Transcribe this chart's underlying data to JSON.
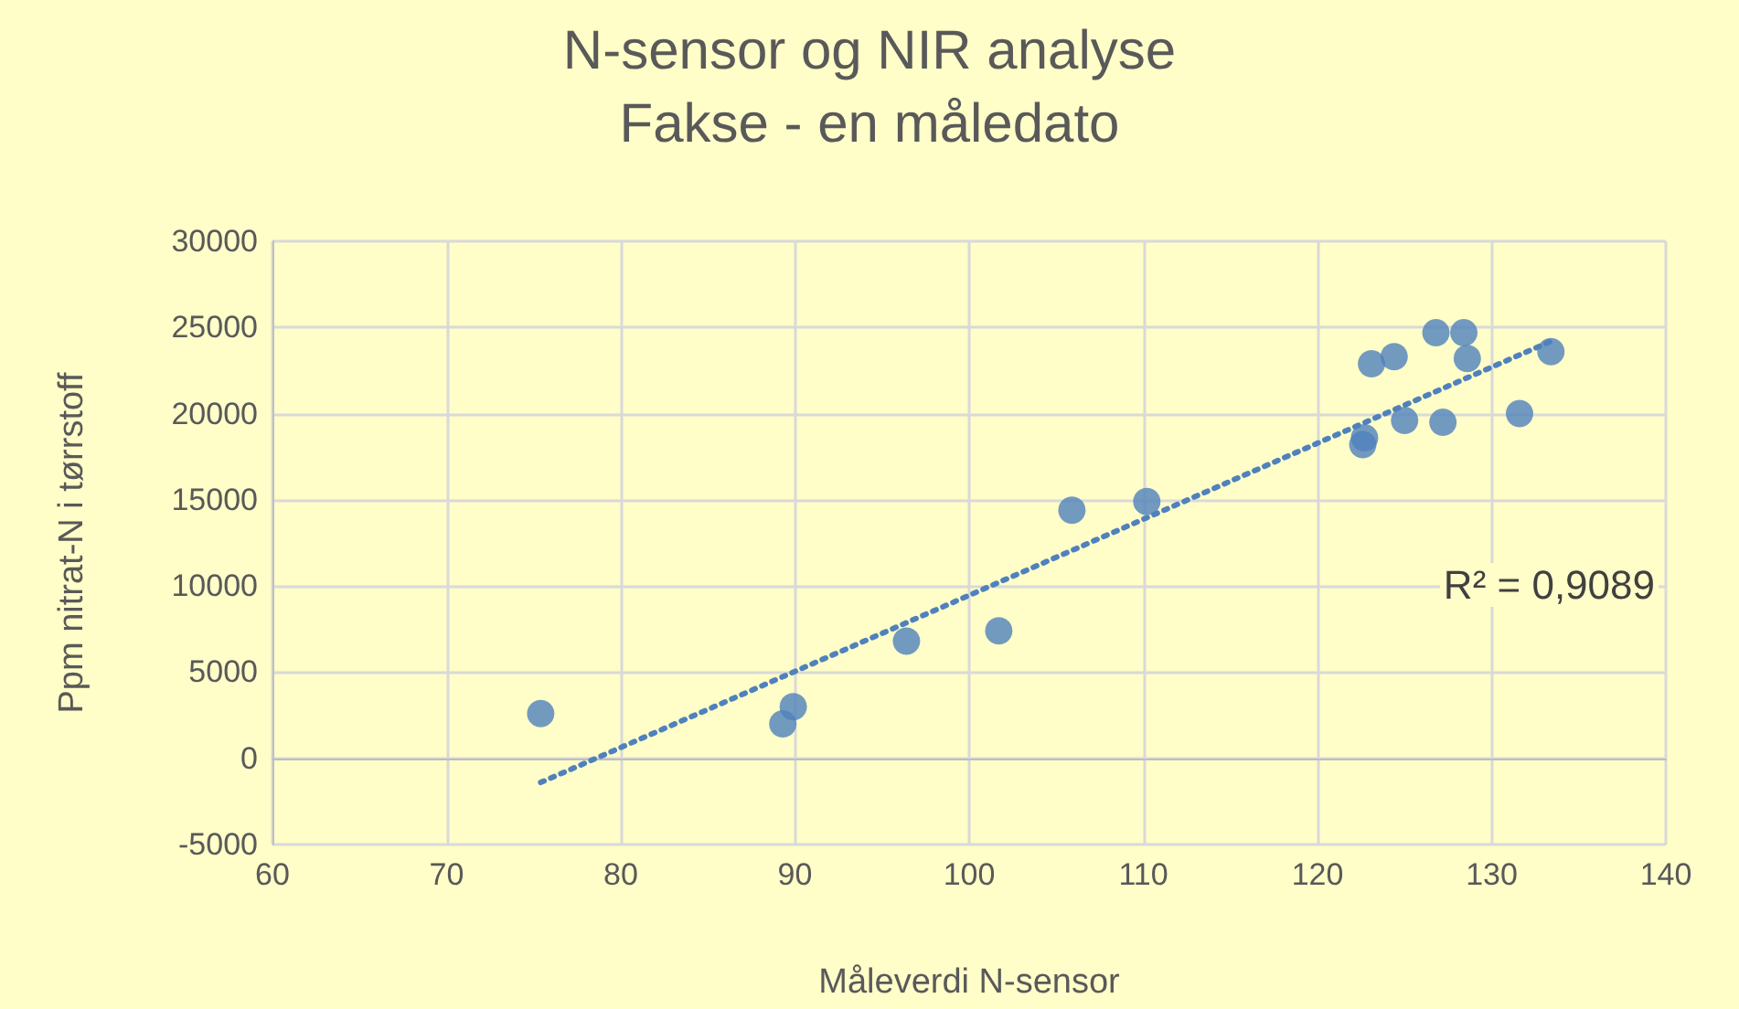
{
  "chart_data": {
    "type": "scatter",
    "title": "N-sensor og NIR analyse",
    "subtitle": "Fakse - en måledato",
    "xlabel": "Måleverdi N-sensor",
    "ylabel": "Ppm nitrat-N i tørrstoff",
    "x": [
      75.4,
      89.3,
      89.9,
      96.4,
      101.7,
      105.9,
      110.2,
      122.6,
      122.7,
      123.1,
      124.4,
      125.0,
      126.8,
      127.2,
      128.4,
      128.6,
      131.6,
      133.4
    ],
    "series": [
      {
        "color": "#4f81bd",
        "values": [
          2600,
          2000,
          3000,
          6800,
          7400,
          14400,
          14900,
          18200,
          18600,
          22900,
          23300,
          19600,
          24700,
          19500,
          24700,
          23200,
          20000,
          23600
        ]
      },
      {
        "type": "line",
        "line_style": "dotted",
        "marker": "none",
        "color": "#4f81bd",
        "x": [
          75.4,
          133.4
        ],
        "values": [
          -1400,
          24200
        ]
      }
    ],
    "annotations": [
      "R² = 0,9089"
    ],
    "xlim": [
      60,
      140
    ],
    "xticks": [
      60,
      70,
      80,
      90,
      100,
      110,
      120,
      130,
      140
    ],
    "ylim": [
      -5000,
      30000
    ],
    "yticks": [
      -5000,
      0,
      5000,
      10000,
      15000,
      20000,
      25000,
      30000
    ],
    "grid": true,
    "marker": "circle"
  }
}
